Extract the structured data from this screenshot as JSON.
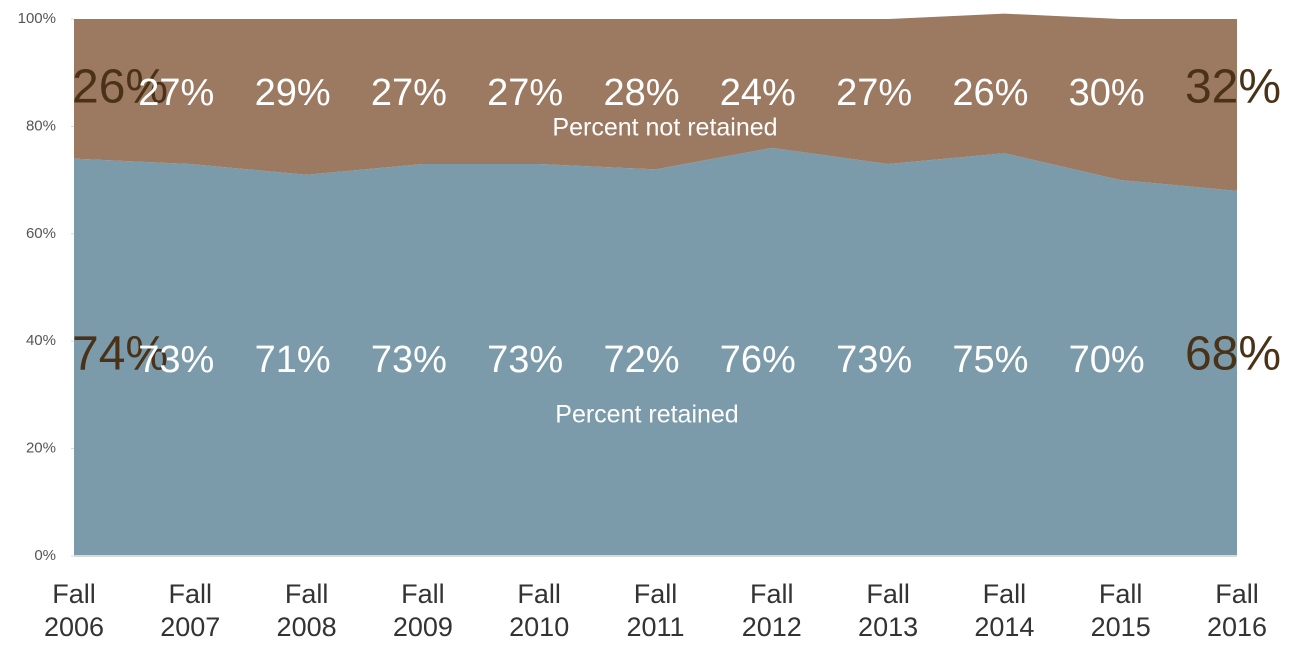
{
  "chart_data": {
    "type": "stacked_area",
    "categories": [
      "Fall 2006",
      "Fall 2007",
      "Fall 2008",
      "Fall 2009",
      "Fall 2010",
      "Fall 2011",
      "Fall 2012",
      "Fall 2013",
      "Fall 2014",
      "Fall 2015",
      "Fall 2016"
    ],
    "series": [
      {
        "name": "Percent retained",
        "color": "#7b9aaa",
        "values": [
          74,
          73,
          71,
          73,
          73,
          72,
          76,
          73,
          75,
          70,
          68
        ],
        "value_labels": [
          "74%",
          "73%",
          "71%",
          "73%",
          "73%",
          "72%",
          "76%",
          "73%",
          "75%",
          "70%",
          "68%"
        ]
      },
      {
        "name": "Percent not retained",
        "color": "#9c7961",
        "values": [
          26,
          27,
          29,
          27,
          27,
          28,
          24,
          27,
          26,
          30,
          32
        ],
        "value_labels": [
          "26%",
          "27%",
          "29%",
          "27%",
          "27%",
          "28%",
          "24%",
          "27%",
          "26%",
          "30%",
          "32%"
        ]
      }
    ],
    "ylim": [
      0,
      100
    ],
    "yticks": [
      {
        "value": 0,
        "label": "0%"
      },
      {
        "value": 20,
        "label": "20%"
      },
      {
        "value": 40,
        "label": "40%"
      },
      {
        "value": 60,
        "label": "60%"
      },
      {
        "value": 80,
        "label": "80%"
      },
      {
        "value": 100,
        "label": "100%"
      }
    ]
  }
}
